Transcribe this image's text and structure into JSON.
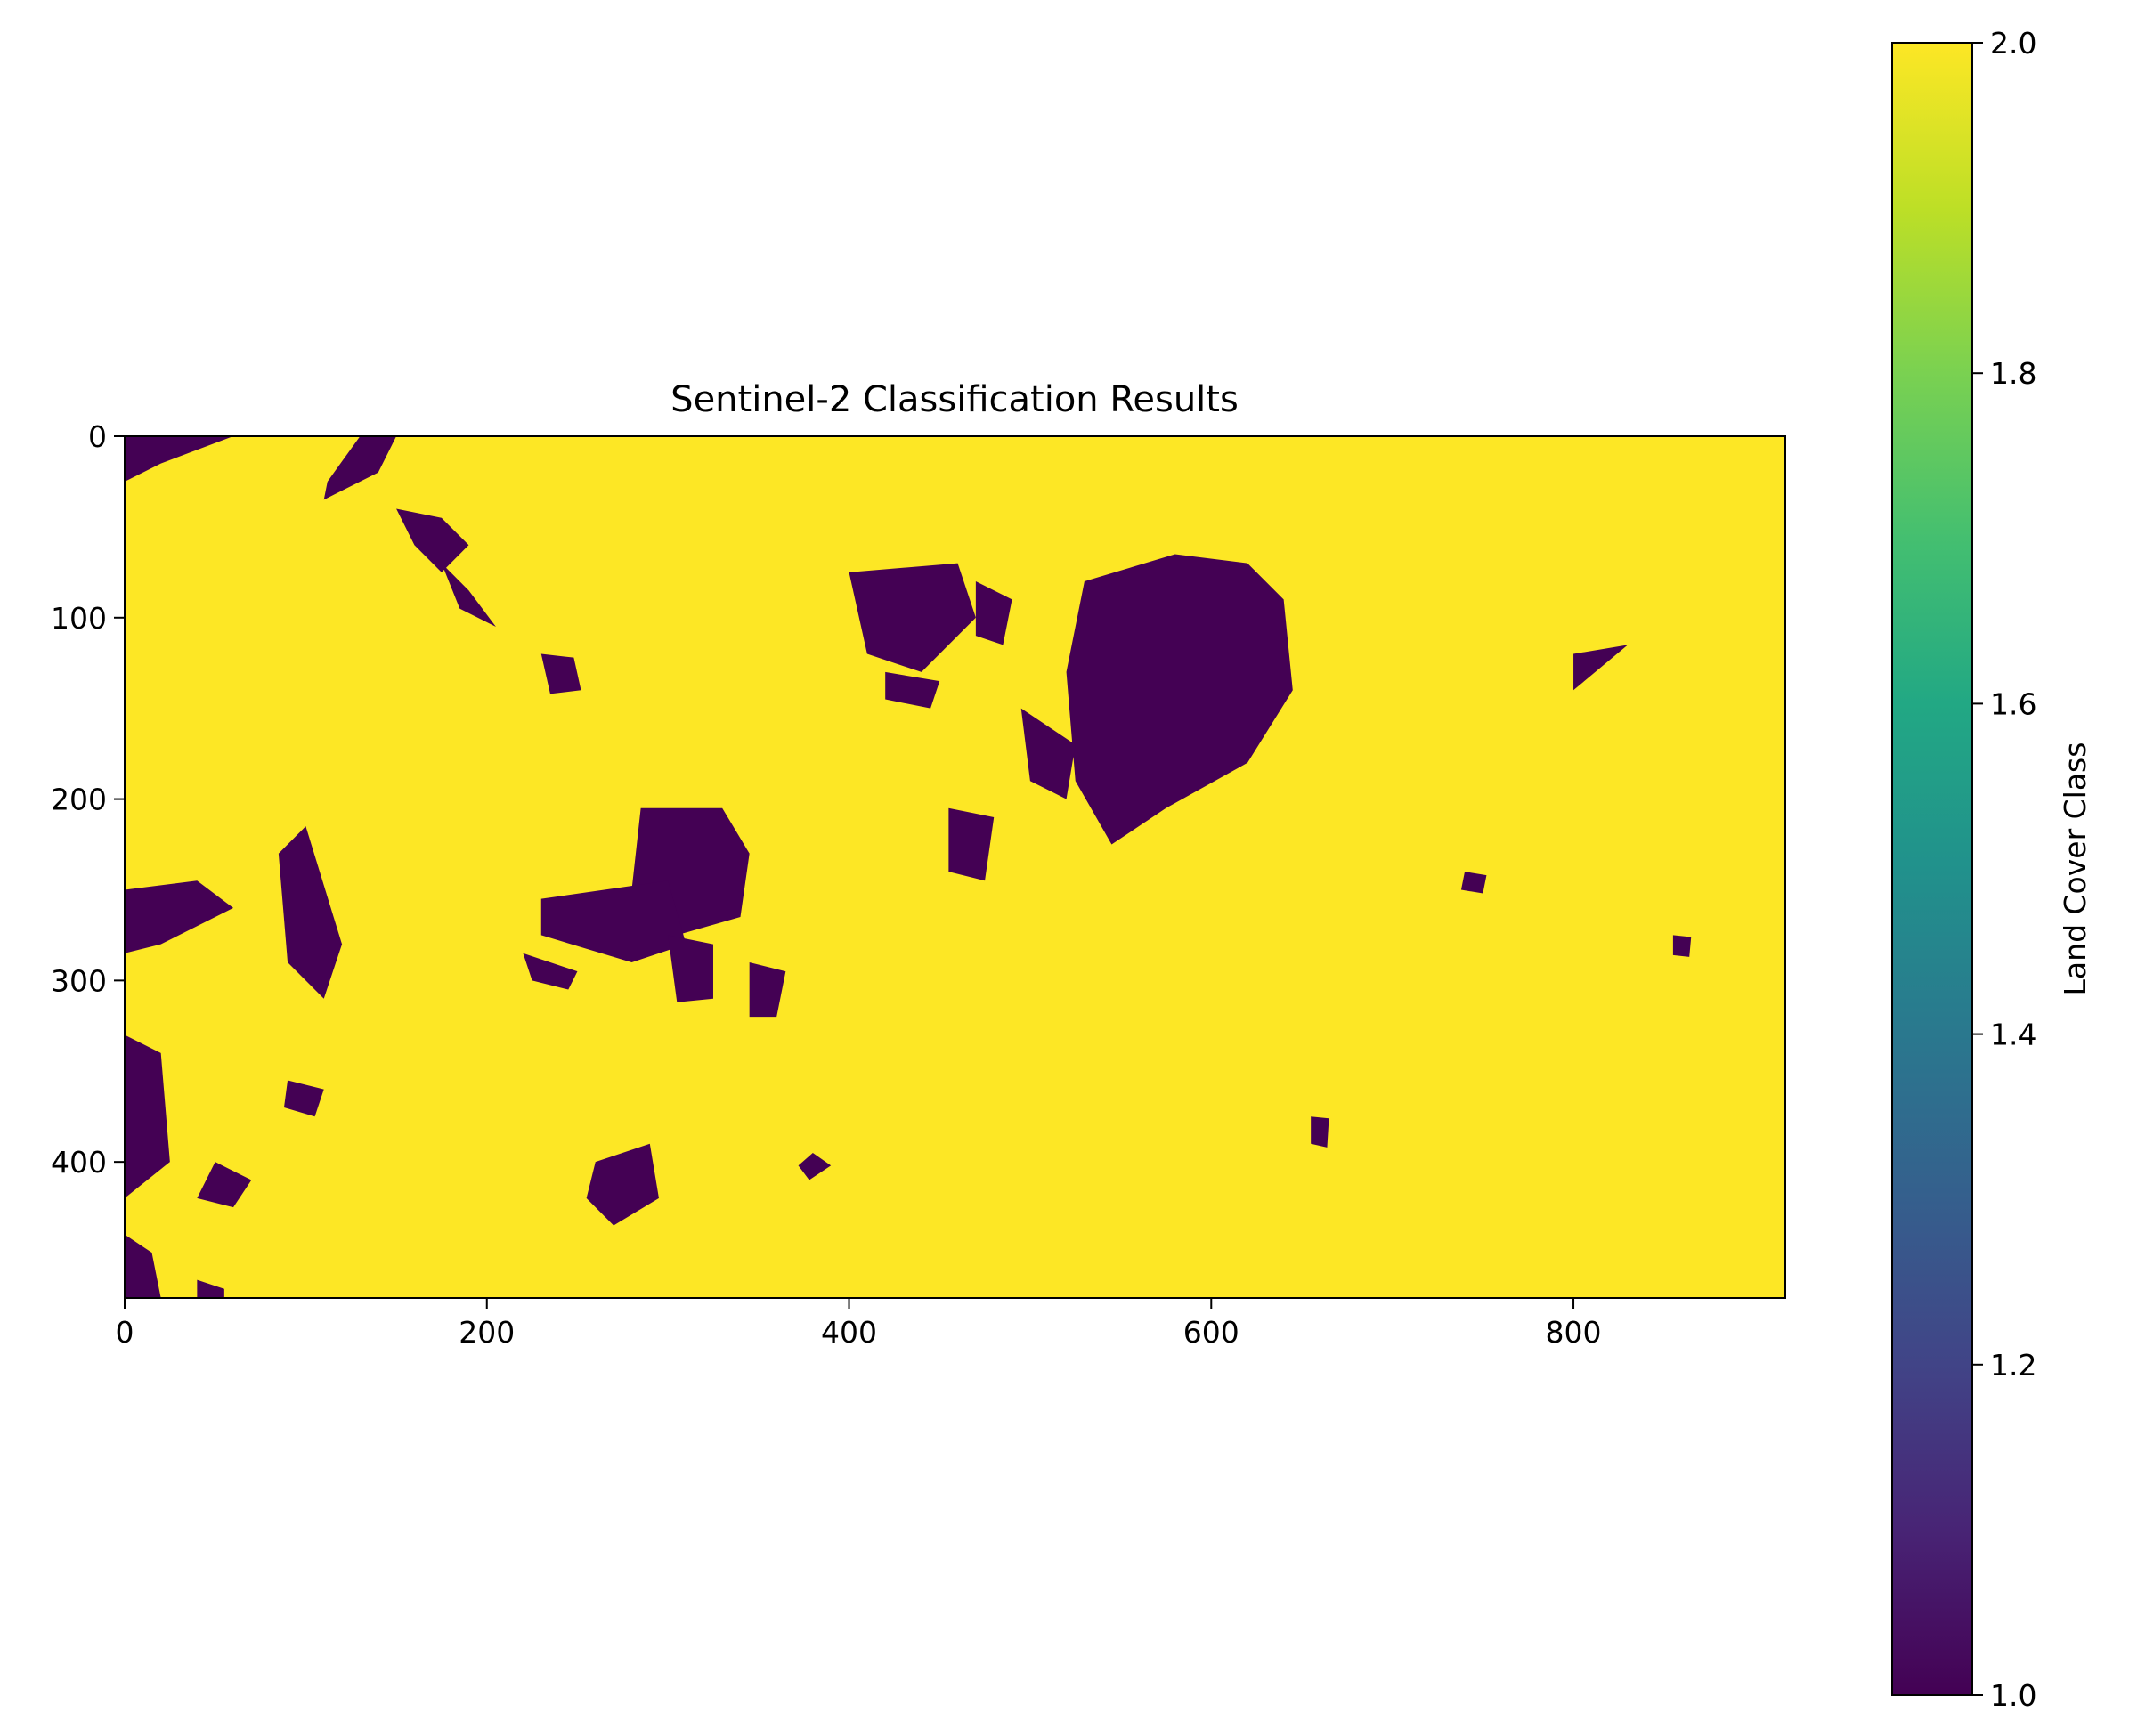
{
  "chart_data": {
    "type": "heatmap",
    "title": "Sentinel-2 Classification Results",
    "xlabel": "",
    "ylabel": "",
    "xlim": [
      0,
      917
    ],
    "ylim": [
      475,
      0
    ],
    "x_ticks": [
      0,
      200,
      400,
      600,
      800
    ],
    "x_tick_labels": [
      "0",
      "200",
      "400",
      "600",
      "800"
    ],
    "y_ticks": [
      0,
      100,
      200,
      300,
      400
    ],
    "y_tick_labels": [
      "0",
      "100",
      "200",
      "300",
      "400"
    ],
    "colormap": "viridis",
    "background_class": 2,
    "background_color": "#fde725",
    "feature_class": 1,
    "feature_color": "#440154",
    "classes": [
      1,
      2
    ],
    "features": [
      {
        "label": "",
        "points": [
          [
            0,
            0
          ],
          [
            60,
            0
          ],
          [
            20,
            15
          ],
          [
            0,
            25
          ]
        ]
      },
      {
        "label": "",
        "points": [
          [
            130,
            0
          ],
          [
            150,
            0
          ],
          [
            140,
            20
          ],
          [
            110,
            35
          ],
          [
            112,
            25
          ]
        ]
      },
      {
        "label": "",
        "points": [
          [
            150,
            40
          ],
          [
            175,
            45
          ],
          [
            190,
            60
          ],
          [
            175,
            75
          ],
          [
            160,
            60
          ]
        ]
      },
      {
        "label": "",
        "points": [
          [
            205,
            105
          ],
          [
            190,
            85
          ],
          [
            175,
            70
          ],
          [
            185,
            95
          ]
        ]
      },
      {
        "label": "",
        "points": [
          [
            230,
            120
          ],
          [
            248,
            122
          ],
          [
            252,
            140
          ],
          [
            235,
            142
          ]
        ]
      },
      {
        "label": "",
        "points": [
          [
            100,
            215
          ],
          [
            120,
            280
          ],
          [
            110,
            310
          ],
          [
            90,
            290
          ],
          [
            85,
            230
          ]
        ]
      },
      {
        "label": "",
        "points": [
          [
            0,
            250
          ],
          [
            40,
            245
          ],
          [
            60,
            260
          ],
          [
            20,
            280
          ],
          [
            0,
            285
          ]
        ]
      },
      {
        "label": "",
        "points": [
          [
            0,
            330
          ],
          [
            20,
            340
          ],
          [
            25,
            400
          ],
          [
            0,
            420
          ]
        ]
      },
      {
        "label": "",
        "points": [
          [
            50,
            400
          ],
          [
            70,
            410
          ],
          [
            60,
            425
          ],
          [
            40,
            420
          ]
        ]
      },
      {
        "label": "",
        "points": [
          [
            0,
            440
          ],
          [
            15,
            450
          ],
          [
            20,
            475
          ],
          [
            0,
            475
          ]
        ]
      },
      {
        "label": "",
        "points": [
          [
            40,
            465
          ],
          [
            55,
            470
          ],
          [
            55,
            475
          ],
          [
            40,
            475
          ]
        ]
      },
      {
        "label": "",
        "points": [
          [
            90,
            355
          ],
          [
            110,
            360
          ],
          [
            105,
            375
          ],
          [
            88,
            370
          ]
        ]
      },
      {
        "label": "",
        "points": [
          [
            285,
            205
          ],
          [
            330,
            205
          ],
          [
            345,
            230
          ],
          [
            340,
            265
          ],
          [
            305,
            275
          ],
          [
            280,
            250
          ]
        ]
      },
      {
        "label": "",
        "points": [
          [
            230,
            255
          ],
          [
            300,
            245
          ],
          [
            310,
            280
          ],
          [
            280,
            290
          ],
          [
            230,
            275
          ]
        ]
      },
      {
        "label": "",
        "points": [
          [
            300,
            275
          ],
          [
            325,
            280
          ],
          [
            325,
            310
          ],
          [
            305,
            312
          ]
        ]
      },
      {
        "label": "",
        "points": [
          [
            220,
            285
          ],
          [
            250,
            295
          ],
          [
            245,
            305
          ],
          [
            225,
            300
          ]
        ]
      },
      {
        "label": "",
        "points": [
          [
            345,
            290
          ],
          [
            365,
            295
          ],
          [
            360,
            320
          ],
          [
            345,
            320
          ]
        ]
      },
      {
        "label": "",
        "points": [
          [
            400,
            75
          ],
          [
            460,
            70
          ],
          [
            470,
            100
          ],
          [
            440,
            130
          ],
          [
            410,
            120
          ]
        ]
      },
      {
        "label": "",
        "points": [
          [
            470,
            80
          ],
          [
            490,
            90
          ],
          [
            485,
            115
          ],
          [
            470,
            110
          ]
        ]
      },
      {
        "label": "",
        "points": [
          [
            420,
            130
          ],
          [
            450,
            135
          ],
          [
            445,
            150
          ],
          [
            420,
            145
          ]
        ]
      },
      {
        "label": "",
        "points": [
          [
            455,
            205
          ],
          [
            480,
            210
          ],
          [
            475,
            245
          ],
          [
            455,
            240
          ]
        ]
      },
      {
        "label": "",
        "points": [
          [
            530,
            80
          ],
          [
            580,
            65
          ],
          [
            620,
            70
          ],
          [
            640,
            90
          ],
          [
            645,
            140
          ],
          [
            620,
            180
          ],
          [
            575,
            205
          ],
          [
            545,
            225
          ],
          [
            525,
            190
          ],
          [
            520,
            130
          ]
        ]
      },
      {
        "label": "",
        "points": [
          [
            495,
            150
          ],
          [
            525,
            170
          ],
          [
            520,
            200
          ],
          [
            500,
            190
          ]
        ]
      },
      {
        "label": "",
        "points": [
          [
            740,
            240
          ],
          [
            752,
            242
          ],
          [
            750,
            252
          ],
          [
            738,
            250
          ]
        ]
      },
      {
        "label": "",
        "points": [
          [
            855,
            275
          ],
          [
            865,
            276
          ],
          [
            864,
            287
          ],
          [
            855,
            286
          ]
        ]
      },
      {
        "label": "",
        "points": [
          [
            655,
            375
          ],
          [
            665,
            376
          ],
          [
            664,
            392
          ],
          [
            655,
            390
          ]
        ]
      },
      {
        "label": "",
        "points": [
          [
            260,
            400
          ],
          [
            290,
            390
          ],
          [
            295,
            420
          ],
          [
            270,
            435
          ],
          [
            255,
            420
          ]
        ]
      },
      {
        "label": "",
        "points": [
          [
            380,
            395
          ],
          [
            390,
            402
          ],
          [
            378,
            410
          ],
          [
            372,
            402
          ]
        ]
      },
      {
        "label": "",
        "points": [
          [
            800,
            120
          ],
          [
            830,
            115
          ],
          [
            800,
            140
          ]
        ]
      }
    ]
  }
}
